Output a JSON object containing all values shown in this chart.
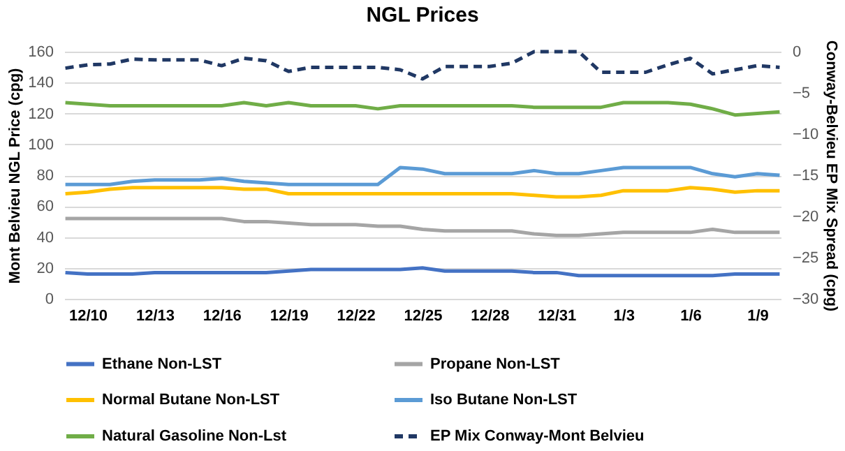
{
  "chart_data": {
    "type": "line",
    "title": "NGL Prices",
    "ylabel": "Mont Belvieu NGL Price (cpg)",
    "y2label": "Conway-Belvieu EP Mix Spread (cpg)",
    "categories": [
      null,
      "12/10",
      null,
      null,
      "12/13",
      null,
      null,
      "12/16",
      null,
      null,
      "12/19",
      null,
      null,
      "12/22",
      null,
      null,
      "12/25",
      null,
      null,
      "12/28",
      null,
      null,
      "12/31",
      null,
      null,
      "1/3",
      null,
      null,
      "1/6",
      null,
      null,
      "1/9",
      null
    ],
    "ylim": [
      0,
      160
    ],
    "yticks": [
      0,
      20,
      40,
      60,
      80,
      100,
      120,
      140,
      160
    ],
    "y2lim": [
      -30,
      0
    ],
    "y2ticks": [
      -30,
      -25,
      -20,
      -15,
      -10,
      -5,
      0
    ],
    "grid": "y",
    "legend": "bottom",
    "line_style": "solid",
    "series": [
      {
        "name": "Ethane Non-LST",
        "color": "#4472c4",
        "values": [
          17,
          16,
          16,
          16,
          17,
          17,
          17,
          17,
          17,
          17,
          18,
          19,
          19,
          19,
          19,
          19,
          20,
          18,
          18,
          18,
          18,
          17,
          17,
          15,
          15,
          15,
          15,
          15,
          15,
          15,
          16,
          16,
          16
        ]
      },
      {
        "name": "Propane Non-LST",
        "color": "#a5a5a5",
        "values": [
          52,
          52,
          52,
          52,
          52,
          52,
          52,
          52,
          50,
          50,
          49,
          48,
          48,
          48,
          47,
          47,
          45,
          44,
          44,
          44,
          44,
          42,
          41,
          41,
          42,
          43,
          43,
          43,
          43,
          45,
          43,
          43,
          43
        ]
      },
      {
        "name": "Normal Butane Non-LST",
        "color": "#ffc000",
        "values": [
          68,
          69,
          71,
          72,
          72,
          72,
          72,
          72,
          71,
          71,
          68,
          68,
          68,
          68,
          68,
          68,
          68,
          68,
          68,
          68,
          68,
          67,
          66,
          66,
          67,
          70,
          70,
          70,
          72,
          71,
          69,
          70,
          70
        ]
      },
      {
        "name": "Iso Butane Non-LST",
        "color": "#5b9bd5",
        "values": [
          74,
          74,
          74,
          76,
          77,
          77,
          77,
          78,
          76,
          75,
          74,
          74,
          74,
          74,
          74,
          85,
          84,
          81,
          81,
          81,
          81,
          83,
          81,
          81,
          83,
          85,
          85,
          85,
          85,
          81,
          79,
          81,
          80
        ]
      },
      {
        "name": "Natural Gasoline Non-Lst",
        "color": "#70ad47",
        "values": [
          127,
          126,
          125,
          125,
          125,
          125,
          125,
          125,
          127,
          125,
          127,
          125,
          125,
          125,
          123,
          125,
          125,
          125,
          125,
          125,
          125,
          124,
          124,
          124,
          124,
          127,
          127,
          127,
          126,
          123,
          119,
          120,
          121
        ]
      },
      {
        "name": "EP Mix Conway-Mont Belvieu",
        "color": "#203864",
        "axis": "y2",
        "line_style": "dashed",
        "values": [
          -2,
          -1.6,
          -1.5,
          -0.9,
          -1,
          -1,
          -1,
          -1.7,
          -0.8,
          -1.1,
          -2.4,
          -1.9,
          -1.9,
          -1.9,
          -1.9,
          -2.2,
          -3.3,
          -1.8,
          -1.8,
          -1.8,
          -1.4,
          0,
          0,
          0,
          -2.5,
          -2.5,
          -2.5,
          -1.6,
          -0.8,
          -2.7,
          -2.2,
          -1.7,
          -1.9
        ]
      }
    ]
  }
}
